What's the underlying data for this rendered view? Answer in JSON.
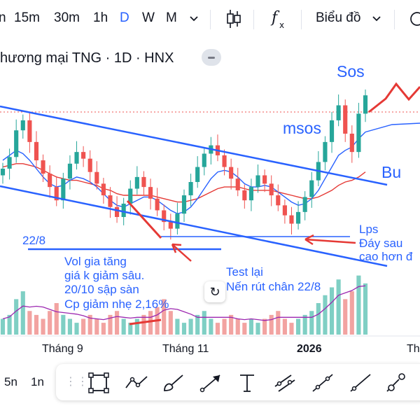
{
  "toolbar": {
    "timeframes": [
      "n",
      "15m",
      "30m",
      "1h",
      "D",
      "W",
      "M"
    ],
    "active_timeframe": "D",
    "indicator_icon": "fx-icon",
    "chart_type_label": "Biểu đồ"
  },
  "symbol_title": "hương mại TNG · 1D · HNX",
  "annotations": {
    "sos": "Sos",
    "msos": "msos",
    "bu": "Bu",
    "date_2208": "22/8",
    "lps_1": "Lps",
    "lps_2": "Đáy sau",
    "lps_3": "cao hơn đ",
    "vol_1": "Vol gia tăng",
    "vol_2": "giá k giảm sâu.",
    "vol_3": "20/10 sập sàn",
    "vol_4": "Cp giảm nhẹ 2,16%",
    "test_1": "Test lại",
    "test_2": "Nến rút chân 22/8"
  },
  "x_axis": {
    "labels": [
      "Tháng 9",
      "Tháng 11",
      "2026",
      "Th"
    ]
  },
  "bottom": {
    "left_timeframes": [
      "5n",
      "1n"
    ],
    "draw_tools": [
      "rectangle-tool",
      "path-tool",
      "brush-tool",
      "arrow-tool",
      "text-tool",
      "parallel-channel-tool",
      "trend-line-tool",
      "ray-tool",
      "long-position-tool"
    ]
  },
  "colors": {
    "up": "#26a69a",
    "down": "#ef5350",
    "channel": "#2962ff",
    "ma_fast": "#2962ff",
    "ma_slow": "#e53935",
    "vol_ma": "#9c27b0",
    "arrow": "#e53935",
    "accent": "#2962ff"
  },
  "chart_data": {
    "type": "candlestick",
    "symbol": "TNG",
    "interval": "1D",
    "exchange": "HNX",
    "series": [
      {
        "name": "candles_close_approx",
        "values": [
          23.5,
          24.2,
          25.8,
          26.4,
          25.1,
          24.0,
          23.2,
          22.4,
          21.6,
          22.9,
          23.8,
          24.5,
          24.1,
          23.3,
          22.6,
          21.9,
          21.2,
          20.6,
          21.4,
          22.3,
          23.0,
          22.4,
          21.7,
          21.0,
          20.3,
          19.9,
          20.8,
          21.9,
          22.7,
          23.6,
          24.4,
          24.9,
          24.3,
          23.6,
          22.9,
          22.2,
          21.6,
          22.4,
          23.1,
          22.6,
          21.9,
          21.3,
          20.7,
          20.2,
          20.9,
          21.8,
          22.8,
          23.9,
          25.1,
          26.4,
          27.3,
          25.6,
          24.5,
          26.8,
          27.9
        ]
      },
      {
        "name": "ma_fast",
        "values": [
          24.0,
          24.3,
          24.6,
          24.4,
          24.0,
          23.5,
          23.0,
          22.6,
          22.4,
          22.5,
          22.8,
          23.0,
          22.9,
          22.7,
          22.4,
          22.0,
          21.6,
          21.3,
          21.2,
          21.4,
          21.6,
          21.8,
          21.8,
          21.6,
          21.3,
          21.0,
          20.8,
          20.9,
          21.2,
          21.7,
          22.3,
          22.9,
          23.3,
          23.4,
          23.3,
          23.0,
          22.6,
          22.4,
          22.4,
          22.5,
          22.4,
          22.1,
          21.8,
          21.5,
          21.3,
          21.4,
          21.7,
          22.2,
          22.9,
          23.6,
          24.3,
          24.6,
          24.8,
          25.3,
          25.7
        ]
      },
      {
        "name": "ma_slow",
        "values": [
          23.6,
          23.7,
          23.8,
          23.8,
          23.7,
          23.6,
          23.4,
          23.2,
          23.0,
          22.9,
          22.8,
          22.8,
          22.7,
          22.6,
          22.5,
          22.3,
          22.2,
          22.0,
          21.9,
          21.9,
          21.9,
          21.9,
          21.9,
          21.8,
          21.7,
          21.6,
          21.5,
          21.5,
          21.6,
          21.7,
          21.9,
          22.1,
          22.3,
          22.4,
          22.4,
          22.4,
          22.3,
          22.2,
          22.2,
          22.2,
          22.2,
          22.1,
          22.0,
          21.9,
          21.8,
          21.7,
          21.7,
          21.8,
          22.0,
          22.2,
          22.5,
          22.7,
          22.8,
          23.0,
          23.3
        ]
      }
    ],
    "volume_approx": [
      4,
      5,
      9,
      11,
      6,
      5,
      4,
      6,
      8,
      5,
      4,
      3,
      4,
      5,
      4,
      3,
      5,
      6,
      4,
      3,
      4,
      5,
      6,
      7,
      9,
      6,
      4,
      3,
      4,
      5,
      6,
      4,
      3,
      4,
      5,
      4,
      3,
      4,
      3,
      4,
      5,
      6,
      4,
      3,
      4,
      5,
      6,
      8,
      10,
      12,
      14,
      9,
      11,
      15,
      13
    ],
    "channel": {
      "type": "descending",
      "lines": [
        "upper",
        "lower"
      ]
    },
    "x_labels": [
      "Tháng 9",
      "Tháng 11",
      "2026"
    ]
  }
}
